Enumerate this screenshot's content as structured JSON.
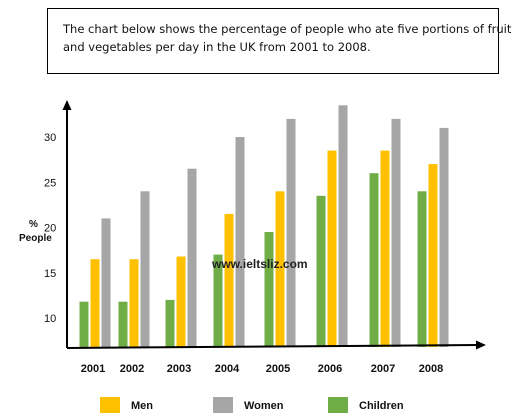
{
  "prompt": {
    "line1": "The chart below shows the percentage of people who ate five portions of fruit",
    "line2": "and vegetables per day in the UK from 2001 to 2008."
  },
  "watermark": "www.ieltsliz.com",
  "colors": {
    "men": "#FFC000",
    "women": "#A6A6A6",
    "children": "#70AD47"
  },
  "chart_data": {
    "type": "bar",
    "categories": [
      "2001",
      "2002",
      "2003",
      "2004",
      "2005",
      "2006",
      "2007",
      "2008"
    ],
    "series": [
      {
        "name": "Men",
        "values": [
          16.5,
          16.5,
          16.8,
          21.5,
          24,
          28.5,
          28.5,
          27
        ]
      },
      {
        "name": "Women",
        "values": [
          21,
          24,
          26.5,
          30,
          32,
          33.5,
          32,
          31
        ]
      },
      {
        "name": "Children",
        "values": [
          11.8,
          11.8,
          12,
          17,
          19.5,
          23.5,
          26,
          24
        ]
      }
    ],
    "ylabel_line1": "%",
    "ylabel_line2": "People",
    "yticks": [
      10,
      15,
      20,
      25,
      30
    ],
    "ylim": [
      6.5,
      35
    ],
    "legend_position": "bottom",
    "grid": false
  }
}
